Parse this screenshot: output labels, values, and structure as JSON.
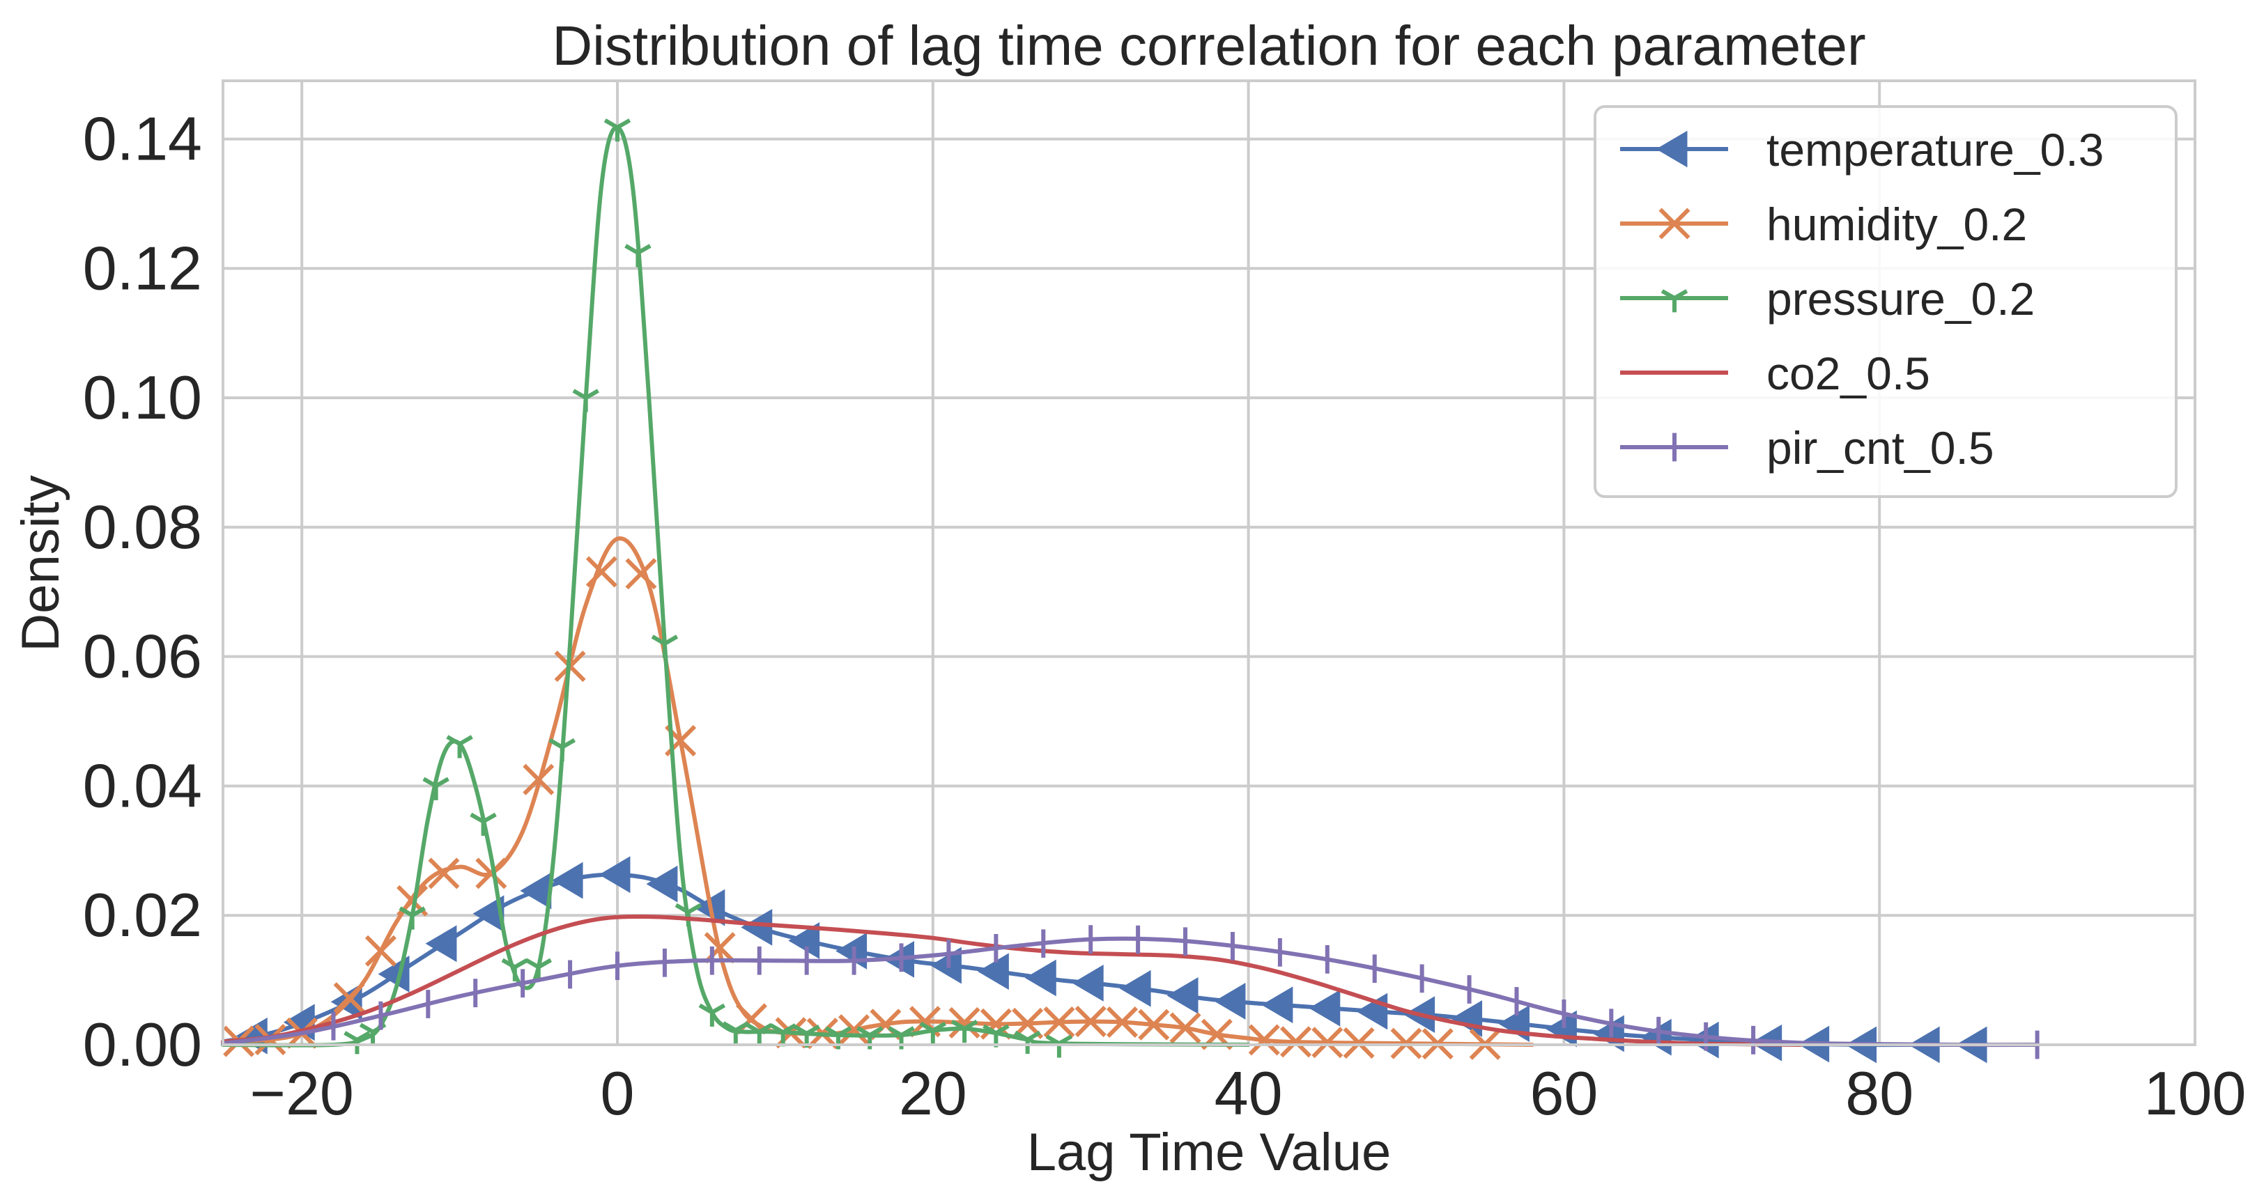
{
  "chart_data": {
    "type": "line",
    "title": "Distribution of lag time correlation for each parameter",
    "xlabel": "Lag Time Value",
    "ylabel": "Density",
    "xlim": [
      -25,
      100
    ],
    "ylim": [
      0,
      0.149
    ],
    "xticks": [
      -20,
      0,
      20,
      40,
      60,
      80,
      100
    ],
    "xtick_labels": [
      "−20",
      "0",
      "20",
      "40",
      "60",
      "80",
      "100"
    ],
    "yticks": [
      0,
      0.02,
      0.04,
      0.06,
      0.08,
      0.1,
      0.12,
      0.14
    ],
    "ytick_labels": [
      "0.00",
      "0.02",
      "0.04",
      "0.06",
      "0.08",
      "0.10",
      "0.12",
      "0.14"
    ],
    "grid": true,
    "legend_position": "top-right",
    "series": [
      {
        "name": "temperature_0.3",
        "color": "#4c72b0",
        "marker": "triangle-left",
        "x": [
          -25,
          -22,
          -19,
          -16,
          -13,
          -10,
          -7,
          -4,
          -2,
          0,
          2,
          4,
          6,
          8,
          10,
          13,
          16,
          19,
          22,
          25,
          28,
          31,
          34,
          37,
          40,
          43,
          46,
          49,
          52,
          55,
          58,
          61,
          64,
          67,
          70,
          73,
          76,
          79,
          82,
          86
        ],
        "y": [
          0.0005,
          0.0018,
          0.0043,
          0.0078,
          0.0125,
          0.0172,
          0.0218,
          0.0248,
          0.026,
          0.0263,
          0.0257,
          0.024,
          0.0212,
          0.019,
          0.0173,
          0.0155,
          0.014,
          0.0128,
          0.012,
          0.011,
          0.01,
          0.0093,
          0.0084,
          0.0072,
          0.0065,
          0.006,
          0.0055,
          0.005,
          0.0045,
          0.0038,
          0.003,
          0.0022,
          0.0015,
          0.001,
          0.0006,
          0.0003,
          0.0001,
          0.0,
          0.0,
          0.0
        ],
        "marker_x": [
          -23,
          -20,
          -17,
          -14,
          -11,
          -8,
          -5,
          -3,
          0,
          3,
          6,
          9,
          12,
          15,
          18,
          21,
          24,
          27,
          30,
          33,
          36,
          39,
          42,
          45,
          48,
          51,
          54,
          57,
          60,
          63,
          66,
          69,
          73,
          76,
          79,
          83,
          86
        ]
      },
      {
        "name": "humidity_0.2",
        "color": "#dd8452",
        "marker": "x",
        "x": [
          -25,
          -22,
          -20,
          -18,
          -16,
          -14,
          -12,
          -10,
          -8,
          -6,
          -4,
          -2,
          0,
          2,
          4,
          6,
          7,
          8,
          9,
          10,
          12,
          14,
          16,
          18,
          20,
          22,
          24,
          26,
          28,
          30,
          32,
          34,
          36,
          38,
          40,
          42,
          46,
          50,
          54,
          58
        ],
        "y": [
          0.0004,
          0.0008,
          0.0018,
          0.0045,
          0.01,
          0.019,
          0.0255,
          0.0275,
          0.0265,
          0.033,
          0.049,
          0.068,
          0.0782,
          0.071,
          0.047,
          0.02,
          0.01,
          0.005,
          0.003,
          0.002,
          0.0017,
          0.0018,
          0.0028,
          0.0035,
          0.0036,
          0.0034,
          0.0032,
          0.0033,
          0.0035,
          0.0036,
          0.0035,
          0.0031,
          0.0026,
          0.0016,
          0.001,
          0.0005,
          0.0003,
          0.0002,
          0.0001,
          0.0
        ],
        "marker_x": [
          -24,
          -22,
          -20,
          -17,
          -15,
          -13,
          -11,
          -8,
          -5,
          -3,
          -1,
          1.5,
          4,
          6.5,
          8.5,
          11,
          13,
          15,
          17,
          19.5,
          22,
          24,
          26,
          28,
          30,
          32,
          34,
          36,
          38,
          41,
          43,
          45,
          47,
          50,
          52,
          55
        ]
      },
      {
        "name": "pressure_0.2",
        "color": "#55a868",
        "marker": "tri-down",
        "x": [
          -25,
          -18,
          -16,
          -15,
          -14,
          -13,
          -12,
          -11,
          -10,
          -9,
          -8,
          -7,
          -6,
          -5,
          -4,
          -3,
          -2,
          -1,
          0,
          1,
          2,
          3,
          4,
          5,
          6,
          7,
          8,
          10,
          14,
          18,
          20,
          22,
          24,
          26,
          28,
          40
        ],
        "y": [
          0.0,
          0.0,
          0.001,
          0.003,
          0.009,
          0.02,
          0.035,
          0.045,
          0.0465,
          0.04,
          0.029,
          0.015,
          0.009,
          0.012,
          0.03,
          0.062,
          0.1,
          0.133,
          0.1418,
          0.132,
          0.1,
          0.062,
          0.029,
          0.012,
          0.005,
          0.0025,
          0.002,
          0.002,
          0.0015,
          0.0015,
          0.0022,
          0.0025,
          0.0018,
          0.0008,
          0.0002,
          0.0
        ],
        "marker_x": [
          -16.5,
          -15.5,
          -13,
          -11.5,
          -10,
          -8.5,
          -6.5,
          -5,
          -3.5,
          -2,
          0,
          1.3,
          3,
          4.5,
          6,
          7.5,
          9,
          10.5,
          12,
          14,
          16,
          18,
          20,
          22,
          24,
          26,
          28
        ]
      },
      {
        "name": "co2_0.5",
        "color": "#c44e52",
        "marker": "none",
        "x": [
          -25,
          -22,
          -19,
          -16,
          -13,
          -10,
          -7,
          -4,
          -1,
          2,
          5,
          8,
          11,
          14,
          17,
          20,
          23,
          26,
          29,
          32,
          35,
          38,
          41,
          44,
          47,
          50,
          53,
          56,
          59,
          62,
          65,
          68,
          71,
          75
        ],
        "y": [
          0.0005,
          0.0012,
          0.0028,
          0.005,
          0.008,
          0.0115,
          0.015,
          0.0178,
          0.0195,
          0.0198,
          0.0194,
          0.0188,
          0.0183,
          0.0178,
          0.0172,
          0.0165,
          0.0155,
          0.0147,
          0.0142,
          0.014,
          0.0138,
          0.0132,
          0.0118,
          0.0098,
          0.0075,
          0.0052,
          0.0035,
          0.0022,
          0.0014,
          0.0009,
          0.0005,
          0.0002,
          0.0001,
          0.0
        ]
      },
      {
        "name": "pir_cnt_0.5",
        "color": "#8172b3",
        "marker": "vline",
        "x": [
          -25,
          -20,
          -15,
          -10,
          -5,
          0,
          5,
          10,
          15,
          20,
          25,
          30,
          35,
          40,
          45,
          50,
          55,
          60,
          65,
          70,
          75,
          80,
          85,
          90
        ],
        "y": [
          0.0002,
          0.0018,
          0.0045,
          0.0075,
          0.01,
          0.0122,
          0.013,
          0.013,
          0.013,
          0.0138,
          0.0152,
          0.0163,
          0.0162,
          0.015,
          0.0132,
          0.0108,
          0.008,
          0.0048,
          0.0024,
          0.001,
          0.0003,
          0.0001,
          0.0,
          0.0
        ],
        "marker_x": [
          -18,
          -15,
          -12,
          -9,
          -6,
          -3,
          0,
          3,
          6,
          9,
          12,
          15,
          18,
          21,
          24,
          27,
          30,
          33,
          36,
          39,
          42,
          45,
          48,
          51,
          54,
          57,
          60,
          63,
          66,
          69,
          72,
          90
        ]
      }
    ]
  }
}
